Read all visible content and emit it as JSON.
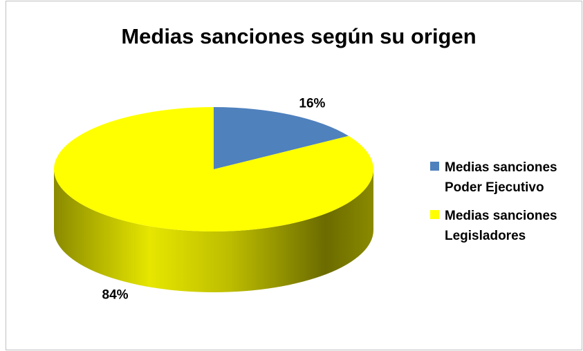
{
  "chart_data": {
    "type": "pie3d",
    "title": "Medias sanciones según su origen",
    "categories": [
      "Medias sanciones Poder Ejecutivo",
      "Medias sanciones Legisladores"
    ],
    "values": [
      16,
      84
    ],
    "value_labels": [
      "16%",
      "84%"
    ],
    "colors": [
      "#4f81bd",
      "#ffff00"
    ],
    "legend": "right"
  }
}
